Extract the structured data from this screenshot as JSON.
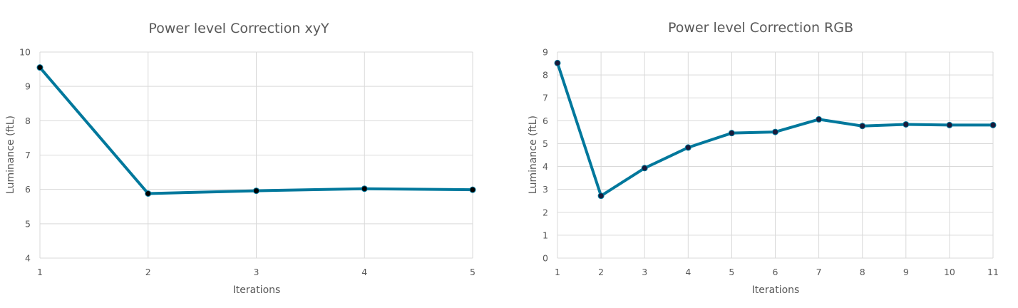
{
  "chart_data": [
    {
      "type": "line",
      "title": "Power level Correction xyY",
      "xlabel": "Iterations",
      "ylabel": "Luminance (ftL)",
      "x": [
        1,
        2,
        3,
        4,
        5
      ],
      "xlim": [
        1,
        5
      ],
      "ylim": [
        4,
        10
      ],
      "yticks": [
        4,
        5,
        6,
        7,
        8,
        9,
        10
      ],
      "grid": true,
      "series": [
        {
          "values": [
            9.55,
            5.88,
            5.96,
            6.02,
            5.99
          ],
          "color": "#00789c",
          "marker_color": "#000000"
        }
      ]
    },
    {
      "type": "line",
      "title": "Power level Correction RGB",
      "xlabel": "Iterations",
      "ylabel": "Luminance (ftL)",
      "x": [
        1,
        2,
        3,
        4,
        5,
        6,
        7,
        8,
        9,
        10,
        11
      ],
      "xlim": [
        1,
        11
      ],
      "ylim": [
        0,
        9
      ],
      "yticks": [
        0,
        1,
        2,
        3,
        4,
        5,
        6,
        7,
        8,
        9
      ],
      "grid": true,
      "series": [
        {
          "values": [
            8.52,
            2.72,
            3.93,
            4.83,
            5.46,
            5.51,
            6.06,
            5.77,
            5.84,
            5.81,
            5.81
          ],
          "color": "#00789c",
          "marker_color": "#1a1a3a"
        }
      ]
    }
  ]
}
